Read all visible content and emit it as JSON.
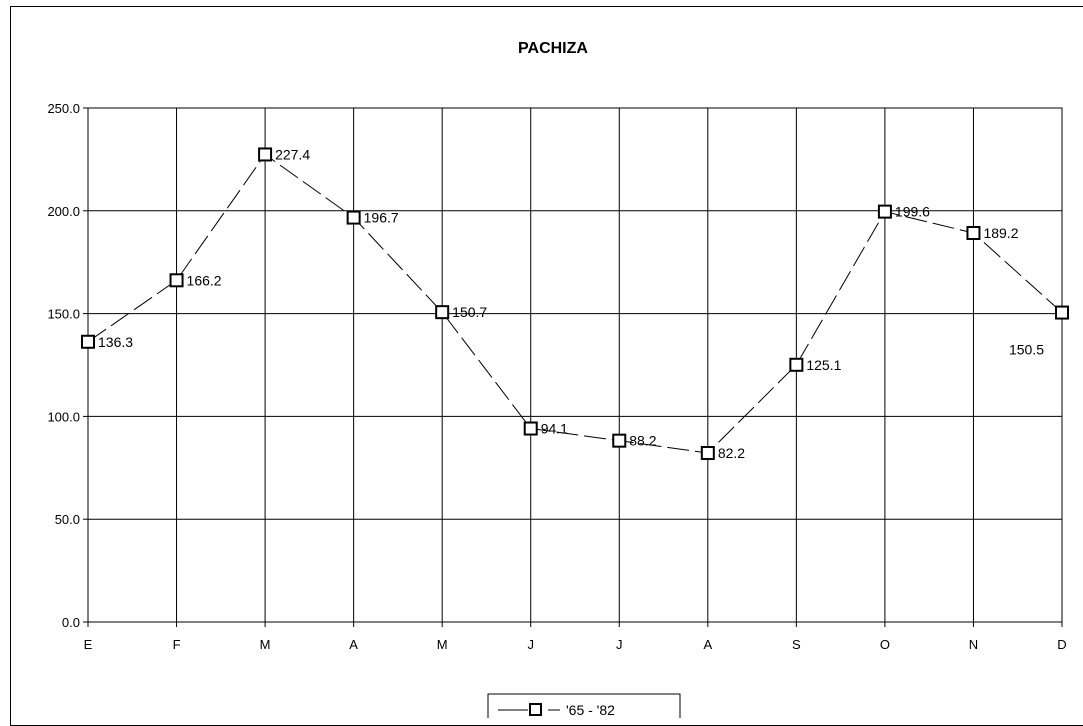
{
  "chart_data": {
    "type": "line",
    "title": "PACHIZA",
    "categories": [
      "E",
      "F",
      "M",
      "A",
      "M",
      "J",
      "J",
      "A",
      "S",
      "O",
      "N",
      "D"
    ],
    "series": [
      {
        "name": "'65 - '82",
        "values": [
          136.3,
          166.2,
          227.4,
          196.7,
          150.7,
          94.1,
          88.2,
          82.2,
          125.1,
          199.6,
          189.2,
          150.5
        ],
        "labels": [
          "136.3",
          "166.2",
          "227.4",
          "196.7",
          "150.7",
          "94.1",
          "88.2",
          "82.2",
          "125.1",
          "199.6",
          "189.2",
          "150.5"
        ],
        "line_style": "dashed",
        "marker": "hollow-square",
        "color": "#000000"
      }
    ],
    "y_ticks": [
      "0.0",
      "50.0",
      "100.0",
      "150.0",
      "200.0",
      "250.0"
    ],
    "ylim": [
      0,
      250
    ],
    "grid": true,
    "legend": "bottom-center"
  }
}
